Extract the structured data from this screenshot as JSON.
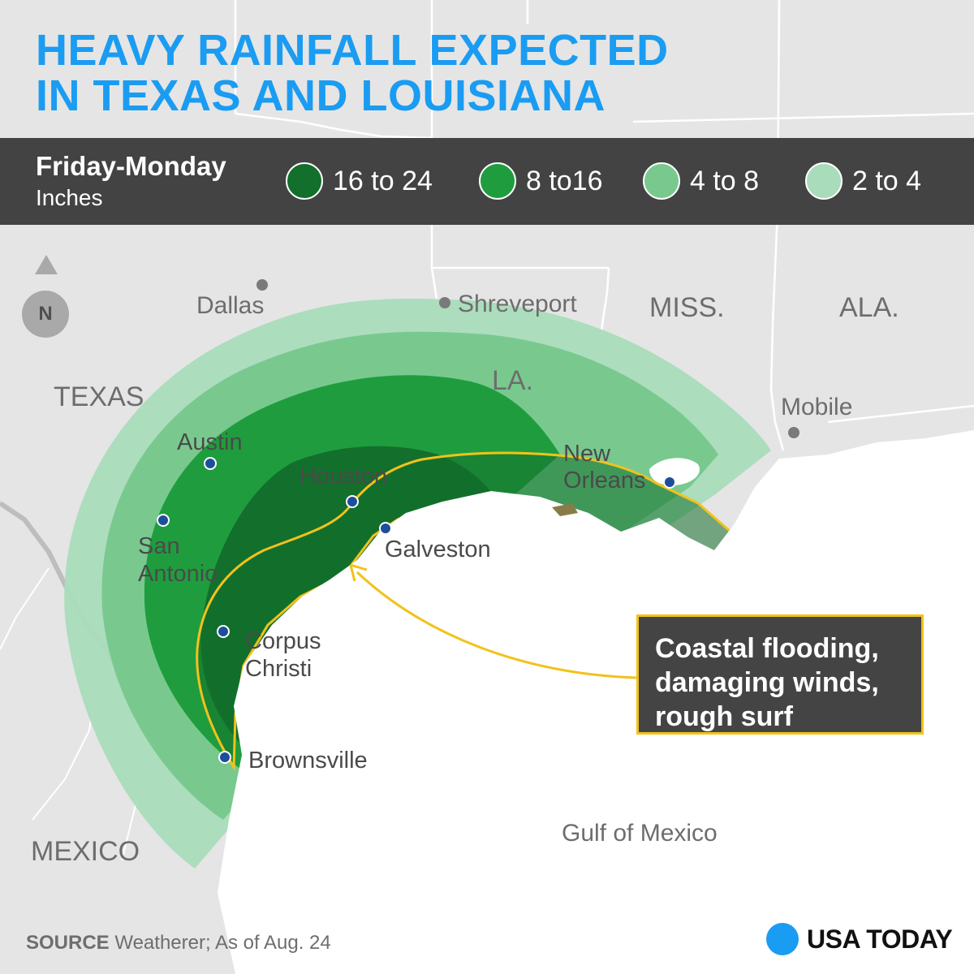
{
  "title": {
    "line1": "HEAVY RAINFALL EXPECTED",
    "line2": "IN TEXAS AND LOUISIANA"
  },
  "legend": {
    "period": "Friday-Monday",
    "unit": "Inches",
    "items": [
      {
        "label": "16 to 24",
        "color": "#136f2c"
      },
      {
        "label": "8 to16",
        "color": "#1f9d3e"
      },
      {
        "label": "4 to 8",
        "color": "#79c98f"
      },
      {
        "label": "2 to 4",
        "color": "#a9dcba"
      }
    ]
  },
  "colors": {
    "title": "#1a9cf2",
    "land": "#e5e5e5",
    "water": "#ffffff",
    "border": "#ffffff",
    "legend_bar": "#434343",
    "coastal_zone": "#f2c21b",
    "city_marker": "#1d4e9b",
    "reference_marker": "#7a7a7a"
  },
  "north": {
    "label": "N",
    "icon": "north-arrow-icon"
  },
  "states": {
    "texas": "TEXAS",
    "la": "LA.",
    "miss": "MISS.",
    "ala": "ALA.",
    "mexico": "MEXICO",
    "gulf": "Gulf of Mexico"
  },
  "reference_cities": {
    "dallas": "Dallas",
    "shreveport": "Shreveport",
    "mobile": "Mobile"
  },
  "cities": {
    "austin": "Austin",
    "san_antonio_1": "San",
    "san_antonio_2": "Antonio",
    "houston": "Houston",
    "galveston": "Galveston",
    "corpus_1": "Corpus",
    "corpus_2": "Christi",
    "brownsville": "Brownsville",
    "new_orleans_1": "New",
    "new_orleans_2": "Orleans"
  },
  "callout": {
    "line1": "Coastal flooding,",
    "line2": "damaging winds,",
    "line3": "rough surf"
  },
  "source": {
    "label": "SOURCE",
    "text": " Weatherer; As of Aug. 24"
  },
  "brand": {
    "name": "USA TODAY"
  }
}
